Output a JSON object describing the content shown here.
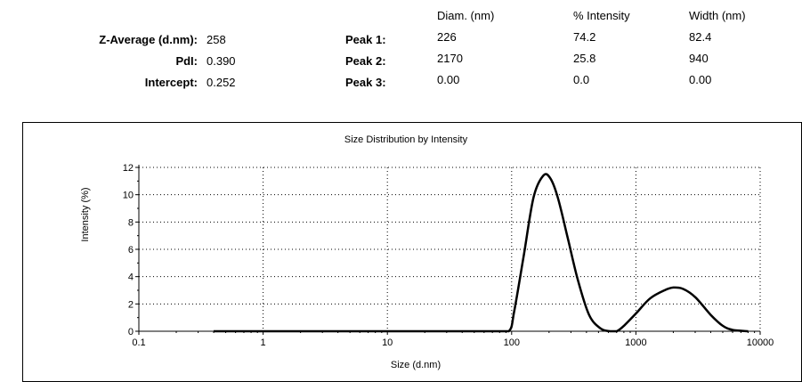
{
  "summary": {
    "headers": {
      "diam": "Diam. (nm)",
      "intensity": "% Intensity",
      "width": "Width (nm)"
    },
    "stats": [
      {
        "label": "Z-Average (d.nm):",
        "value": "258"
      },
      {
        "label": "PdI:",
        "value": "0.390"
      },
      {
        "label": "Intercept:",
        "value": "0.252"
      }
    ],
    "peaks": [
      {
        "label": "Peak 1:",
        "diam": "226",
        "intensity": "74.2",
        "width": "82.4"
      },
      {
        "label": "Peak 2:",
        "diam": "2170",
        "intensity": "25.8",
        "width": "940"
      },
      {
        "label": "Peak 3:",
        "diam": "0.00",
        "intensity": "0.0",
        "width": "0.00"
      }
    ]
  },
  "chart_data": {
    "type": "line",
    "title": "Size Distribution by Intensity",
    "xlabel": "Size (d.nm)",
    "ylabel": "Intensity (%)",
    "x_scale": "log",
    "xlim": [
      0.1,
      10000
    ],
    "ylim": [
      0,
      12
    ],
    "x_ticks": [
      "0.1",
      "1",
      "10",
      "100",
      "1000",
      "10000"
    ],
    "x_tick_values": [
      0.1,
      1,
      10,
      100,
      1000,
      10000
    ],
    "y_ticks": [
      0,
      2,
      4,
      6,
      8,
      10,
      12
    ],
    "grid": true,
    "line_color": "#000000",
    "series": [
      {
        "x": [
          0.4,
          1,
          10,
          70,
          95,
          105,
          125,
          150,
          180,
          205,
          235,
          280,
          340,
          420,
          520,
          620,
          700,
          800,
          1000,
          1300,
          1700,
          2000,
          2400,
          3000,
          4000,
          5000,
          6000,
          8000
        ],
        "y": [
          0,
          0,
          0,
          0,
          0,
          1.5,
          5.5,
          9.8,
          11.4,
          11.2,
          9.8,
          7.0,
          3.8,
          1.2,
          0.2,
          0,
          0,
          0.4,
          1.3,
          2.4,
          3.0,
          3.2,
          3.1,
          2.5,
          1.2,
          0.4,
          0.1,
          0
        ]
      }
    ]
  }
}
